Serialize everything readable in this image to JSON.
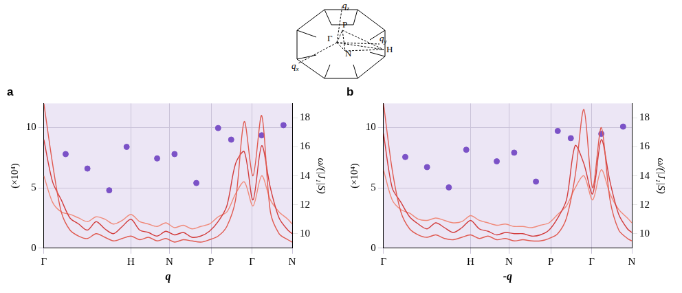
{
  "chart_data": [
    {
      "type": "line",
      "title": "a",
      "x_label": "q",
      "y_label": "(×10⁴)",
      "y2_label": "ω/(|J₁|S)",
      "xlim": [
        0,
        2.85
      ],
      "xticks": [
        {
          "value": 0,
          "label": "Γ"
        },
        {
          "value": 1,
          "label": "H"
        },
        {
          "value": 1.44,
          "label": "N"
        },
        {
          "value": 1.92,
          "label": "P"
        },
        {
          "value": 2.39,
          "label": "Γ"
        },
        {
          "value": 2.85,
          "label": "N"
        }
      ],
      "ylim": [
        0,
        12
      ],
      "yticks": [
        0,
        5,
        10
      ],
      "y2lim": [
        9,
        19
      ],
      "y2ticks": [
        10,
        12,
        14,
        16,
        18
      ],
      "grid": true,
      "x": [
        0,
        0.1,
        0.2,
        0.3,
        0.4,
        0.5,
        0.6,
        0.7,
        0.8,
        0.9,
        1.0,
        1.1,
        1.2,
        1.3,
        1.4,
        1.5,
        1.6,
        1.7,
        1.8,
        1.9,
        2.0,
        2.1,
        2.2,
        2.3,
        2.4,
        2.5,
        2.6,
        2.7,
        2.8,
        2.85
      ],
      "series": [
        {
          "color": "#e05a50",
          "values": [
            12,
            7,
            3,
            1.5,
            1,
            0.8,
            1.2,
            0.9,
            0.6,
            0.8,
            1.0,
            0.7,
            0.9,
            0.6,
            0.8,
            0.5,
            0.7,
            0.6,
            0.5,
            0.7,
            1.0,
            1.8,
            4,
            10.5,
            6,
            11,
            3,
            1.2,
            0.7,
            0.5
          ]
        },
        {
          "color": "#d23c3c",
          "values": [
            9,
            5.5,
            4,
            2.5,
            2,
            1.5,
            2.2,
            1.6,
            1.2,
            1.8,
            2.4,
            1.5,
            1.3,
            1.0,
            1.4,
            1.1,
            1.3,
            0.9,
            1.0,
            1.4,
            2.2,
            3.5,
            7,
            8,
            4,
            8.5,
            5,
            2.5,
            1.5,
            1.2
          ]
        },
        {
          "color": "#f08a7a",
          "values": [
            6,
            3.8,
            3,
            2.8,
            2.5,
            2.2,
            2.6,
            2.4,
            2,
            2.3,
            2.8,
            2.2,
            2,
            1.8,
            2.1,
            1.7,
            1.9,
            1.6,
            1.8,
            2,
            2.6,
            3,
            4.5,
            5.5,
            3.5,
            6,
            4,
            3,
            2.4,
            2
          ]
        },
        {
          "type": "scatter",
          "axis": "y2",
          "marker": "circle",
          "color": "#7b52c7",
          "x": [
            0.25,
            0.5,
            0.75,
            0.95,
            1.3,
            1.5,
            1.75,
            2.0,
            2.15,
            2.5,
            2.75
          ],
          "values": [
            15.5,
            14.5,
            13,
            16,
            15.2,
            15.5,
            13.5,
            17.3,
            16.5,
            16.8,
            17.5
          ]
        }
      ]
    },
    {
      "type": "line",
      "title": "b",
      "x_label": "-q",
      "y_label": "(×10⁴)",
      "y2_label": "ω/(|J₁|S)",
      "xlim": [
        0,
        2.85
      ],
      "xticks": [
        {
          "value": 0,
          "label": "Γ"
        },
        {
          "value": 1,
          "label": "H"
        },
        {
          "value": 1.44,
          "label": "N"
        },
        {
          "value": 1.92,
          "label": "P"
        },
        {
          "value": 2.39,
          "label": "Γ"
        },
        {
          "value": 2.85,
          "label": "N"
        }
      ],
      "ylim": [
        0,
        12
      ],
      "yticks": [
        0,
        5,
        10
      ],
      "y2lim": [
        9,
        19
      ],
      "y2ticks": [
        10,
        12,
        14,
        16,
        18
      ],
      "grid": true,
      "x": [
        0,
        0.1,
        0.2,
        0.3,
        0.4,
        0.5,
        0.6,
        0.7,
        0.8,
        0.9,
        1.0,
        1.1,
        1.2,
        1.3,
        1.4,
        1.5,
        1.6,
        1.7,
        1.8,
        1.9,
        2.0,
        2.1,
        2.2,
        2.3,
        2.4,
        2.5,
        2.6,
        2.7,
        2.8,
        2.85
      ],
      "series": [
        {
          "color": "#e05a50",
          "values": [
            12,
            6.5,
            3,
            1.6,
            1.1,
            0.9,
            1.1,
            0.8,
            0.7,
            0.9,
            1.1,
            0.8,
            1.0,
            0.7,
            0.8,
            0.6,
            0.7,
            0.6,
            0.6,
            0.8,
            1.2,
            2.5,
            6,
            11.5,
            5,
            10,
            4,
            1.5,
            0.8,
            0.6
          ]
        },
        {
          "color": "#d23c3c",
          "values": [
            9.5,
            5,
            3.8,
            2.6,
            2,
            1.6,
            2.1,
            1.7,
            1.3,
            1.7,
            2.3,
            1.6,
            1.4,
            1.1,
            1.3,
            1.2,
            1.2,
            1.0,
            1.1,
            1.5,
            2.5,
            4,
            8.5,
            7,
            4.5,
            9,
            5.5,
            2.8,
            1.6,
            1.3
          ]
        },
        {
          "color": "#f08a7a",
          "values": [
            6.5,
            4,
            3.2,
            2.9,
            2.4,
            2.3,
            2.5,
            2.3,
            2.1,
            2.2,
            2.7,
            2.3,
            2.1,
            1.9,
            2,
            1.8,
            1.8,
            1.7,
            1.9,
            2.1,
            2.8,
            3.5,
            5,
            6,
            4,
            6.5,
            4.5,
            3.2,
            2.5,
            2.1
          ]
        },
        {
          "type": "scatter",
          "axis": "y2",
          "marker": "circle",
          "color": "#7b52c7",
          "x": [
            0.25,
            0.5,
            0.75,
            0.95,
            1.3,
            1.5,
            1.75,
            2.0,
            2.15,
            2.5,
            2.75
          ],
          "values": [
            15.3,
            14.6,
            13.2,
            15.8,
            15.0,
            15.6,
            13.6,
            17.1,
            16.6,
            16.9,
            17.4
          ]
        }
      ]
    }
  ],
  "inset": {
    "labels": [
      {
        "base": "q",
        "sub": "z"
      },
      {
        "base": "q",
        "sub": "y"
      },
      {
        "base": "q",
        "sub": "x"
      },
      {
        "base": "P"
      },
      {
        "base": "Γ"
      },
      {
        "base": "N"
      },
      {
        "base": "H"
      }
    ]
  }
}
